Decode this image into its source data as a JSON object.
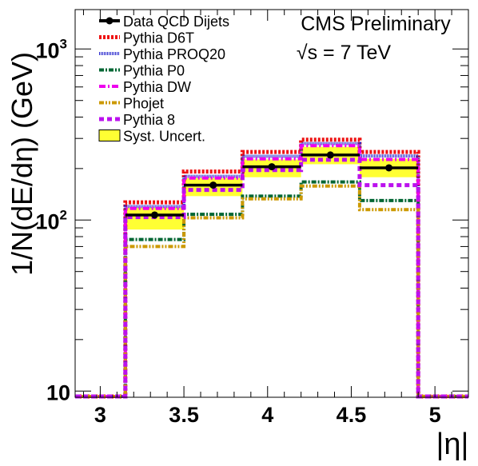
{
  "chart_data": {
    "type": "line",
    "title": "CMS Preliminary",
    "subtitle": "√s = 7 TeV",
    "xlabel": "|η|",
    "ylabel": "1/N(dE/dη) (GeV)",
    "yscale": "log",
    "xlim": [
      2.85,
      5.2
    ],
    "ylim": [
      9.2,
      1700
    ],
    "legend_position": "top-left",
    "x_ticks": [
      {
        "value": 3.0,
        "label": "3"
      },
      {
        "value": 3.5,
        "label": "3.5"
      },
      {
        "value": 4.0,
        "label": "4"
      },
      {
        "value": 4.5,
        "label": "4.5"
      },
      {
        "value": 5.0,
        "label": "5"
      }
    ],
    "y_tick_labels": [
      {
        "value": 10,
        "base": "10",
        "exp": ""
      },
      {
        "value": 100,
        "base": "10",
        "exp": "2"
      },
      {
        "value": 1000,
        "base": "10",
        "exp": "3"
      }
    ],
    "bin_edges": [
      2.85,
      3.15,
      3.5,
      3.85,
      4.2,
      4.55,
      4.9,
      5.2
    ],
    "data": {
      "name": "Data QCD Dijets",
      "x": [
        3.325,
        3.675,
        4.025,
        4.375,
        4.725
      ],
      "y": [
        107,
        160,
        205,
        240,
        202
      ],
      "syst_low": [
        88,
        138,
        178,
        212,
        178
      ],
      "syst_high": [
        118,
        176,
        226,
        268,
        228
      ]
    },
    "series": [
      {
        "name": "Pythia D6T",
        "color": "#ee1111",
        "dash": "3,2",
        "width": 5,
        "values": [
          9.3,
          127,
          192,
          250,
          295,
          250,
          9.3
        ]
      },
      {
        "name": "Pythia PROQ20",
        "color": "#2222cc",
        "dash": "1,1",
        "width": 4,
        "values": [
          9.3,
          120,
          180,
          236,
          280,
          237,
          9.3
        ]
      },
      {
        "name": "Pythia P0",
        "color": "#006633",
        "dash": "6,2,2,2",
        "width": 4,
        "values": [
          9.3,
          77,
          108,
          138,
          167,
          130,
          9.3
        ]
      },
      {
        "name": "Pythia DW",
        "color": "#ee00ee",
        "dash": "8,3,2,3",
        "width": 4,
        "values": [
          9.3,
          117,
          176,
          228,
          272,
          226,
          9.3
        ]
      },
      {
        "name": "Phojet",
        "color": "#cc9900",
        "dash": "6,2,2,2,2,2",
        "width": 4,
        "values": [
          9.3,
          70,
          103,
          133,
          158,
          115,
          9.3
        ]
      },
      {
        "name": "Pythia 8",
        "color": "#bb11ee",
        "dash": "6,4",
        "width": 5,
        "values": [
          9.3,
          104,
          150,
          196,
          225,
          160,
          9.3
        ]
      }
    ],
    "legend_syst": "Syst. Uncert.",
    "colors": {
      "syst_fill": "#ffff33",
      "data": "#000000"
    }
  }
}
